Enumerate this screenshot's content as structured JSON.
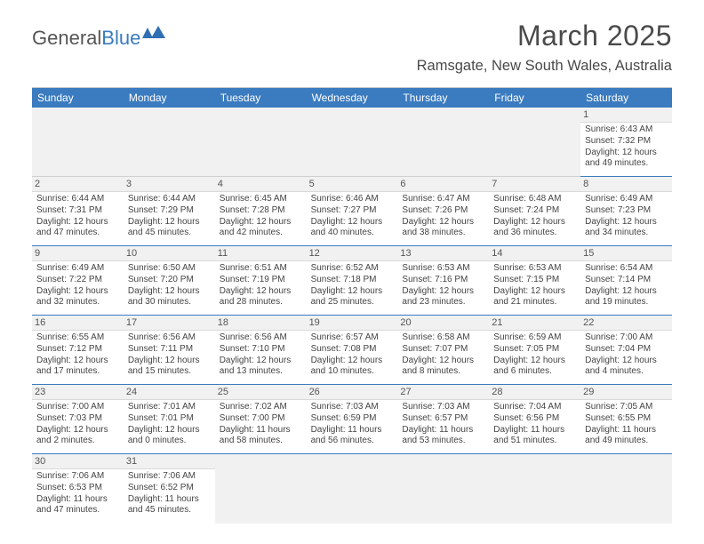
{
  "logo": {
    "word1": "General",
    "word2": "Blue",
    "icon_color": "#2f6fb3"
  },
  "title": "March 2025",
  "location": "Ramsgate, New South Wales, Australia",
  "colors": {
    "header_bg": "#3b7bbf",
    "header_fg": "#ffffff",
    "rule": "#3b7bbf",
    "shade": "#f1f1f1"
  },
  "day_headers": [
    "Sunday",
    "Monday",
    "Tuesday",
    "Wednesday",
    "Thursday",
    "Friday",
    "Saturday"
  ],
  "leading_blanks": 6,
  "trailing_blanks": 5,
  "days": [
    {
      "n": 1,
      "sunrise": "6:43 AM",
      "sunset": "7:32 PM",
      "dl_h": 12,
      "dl_m": 49
    },
    {
      "n": 2,
      "sunrise": "6:44 AM",
      "sunset": "7:31 PM",
      "dl_h": 12,
      "dl_m": 47
    },
    {
      "n": 3,
      "sunrise": "6:44 AM",
      "sunset": "7:29 PM",
      "dl_h": 12,
      "dl_m": 45
    },
    {
      "n": 4,
      "sunrise": "6:45 AM",
      "sunset": "7:28 PM",
      "dl_h": 12,
      "dl_m": 42
    },
    {
      "n": 5,
      "sunrise": "6:46 AM",
      "sunset": "7:27 PM",
      "dl_h": 12,
      "dl_m": 40
    },
    {
      "n": 6,
      "sunrise": "6:47 AM",
      "sunset": "7:26 PM",
      "dl_h": 12,
      "dl_m": 38
    },
    {
      "n": 7,
      "sunrise": "6:48 AM",
      "sunset": "7:24 PM",
      "dl_h": 12,
      "dl_m": 36
    },
    {
      "n": 8,
      "sunrise": "6:49 AM",
      "sunset": "7:23 PM",
      "dl_h": 12,
      "dl_m": 34
    },
    {
      "n": 9,
      "sunrise": "6:49 AM",
      "sunset": "7:22 PM",
      "dl_h": 12,
      "dl_m": 32
    },
    {
      "n": 10,
      "sunrise": "6:50 AM",
      "sunset": "7:20 PM",
      "dl_h": 12,
      "dl_m": 30
    },
    {
      "n": 11,
      "sunrise": "6:51 AM",
      "sunset": "7:19 PM",
      "dl_h": 12,
      "dl_m": 28
    },
    {
      "n": 12,
      "sunrise": "6:52 AM",
      "sunset": "7:18 PM",
      "dl_h": 12,
      "dl_m": 25
    },
    {
      "n": 13,
      "sunrise": "6:53 AM",
      "sunset": "7:16 PM",
      "dl_h": 12,
      "dl_m": 23
    },
    {
      "n": 14,
      "sunrise": "6:53 AM",
      "sunset": "7:15 PM",
      "dl_h": 12,
      "dl_m": 21
    },
    {
      "n": 15,
      "sunrise": "6:54 AM",
      "sunset": "7:14 PM",
      "dl_h": 12,
      "dl_m": 19
    },
    {
      "n": 16,
      "sunrise": "6:55 AM",
      "sunset": "7:12 PM",
      "dl_h": 12,
      "dl_m": 17
    },
    {
      "n": 17,
      "sunrise": "6:56 AM",
      "sunset": "7:11 PM",
      "dl_h": 12,
      "dl_m": 15
    },
    {
      "n": 18,
      "sunrise": "6:56 AM",
      "sunset": "7:10 PM",
      "dl_h": 12,
      "dl_m": 13
    },
    {
      "n": 19,
      "sunrise": "6:57 AM",
      "sunset": "7:08 PM",
      "dl_h": 12,
      "dl_m": 10
    },
    {
      "n": 20,
      "sunrise": "6:58 AM",
      "sunset": "7:07 PM",
      "dl_h": 12,
      "dl_m": 8
    },
    {
      "n": 21,
      "sunrise": "6:59 AM",
      "sunset": "7:05 PM",
      "dl_h": 12,
      "dl_m": 6
    },
    {
      "n": 22,
      "sunrise": "7:00 AM",
      "sunset": "7:04 PM",
      "dl_h": 12,
      "dl_m": 4
    },
    {
      "n": 23,
      "sunrise": "7:00 AM",
      "sunset": "7:03 PM",
      "dl_h": 12,
      "dl_m": 2
    },
    {
      "n": 24,
      "sunrise": "7:01 AM",
      "sunset": "7:01 PM",
      "dl_h": 12,
      "dl_m": 0
    },
    {
      "n": 25,
      "sunrise": "7:02 AM",
      "sunset": "7:00 PM",
      "dl_h": 11,
      "dl_m": 58
    },
    {
      "n": 26,
      "sunrise": "7:03 AM",
      "sunset": "6:59 PM",
      "dl_h": 11,
      "dl_m": 56
    },
    {
      "n": 27,
      "sunrise": "7:03 AM",
      "sunset": "6:57 PM",
      "dl_h": 11,
      "dl_m": 53
    },
    {
      "n": 28,
      "sunrise": "7:04 AM",
      "sunset": "6:56 PM",
      "dl_h": 11,
      "dl_m": 51
    },
    {
      "n": 29,
      "sunrise": "7:05 AM",
      "sunset": "6:55 PM",
      "dl_h": 11,
      "dl_m": 49
    },
    {
      "n": 30,
      "sunrise": "7:06 AM",
      "sunset": "6:53 PM",
      "dl_h": 11,
      "dl_m": 47
    },
    {
      "n": 31,
      "sunrise": "7:06 AM",
      "sunset": "6:52 PM",
      "dl_h": 11,
      "dl_m": 45
    }
  ],
  "labels": {
    "sunrise": "Sunrise:",
    "sunset": "Sunset:",
    "daylight_prefix": "Daylight:",
    "hours_word": "hours",
    "and_word": "and",
    "minutes_word": "minutes."
  }
}
